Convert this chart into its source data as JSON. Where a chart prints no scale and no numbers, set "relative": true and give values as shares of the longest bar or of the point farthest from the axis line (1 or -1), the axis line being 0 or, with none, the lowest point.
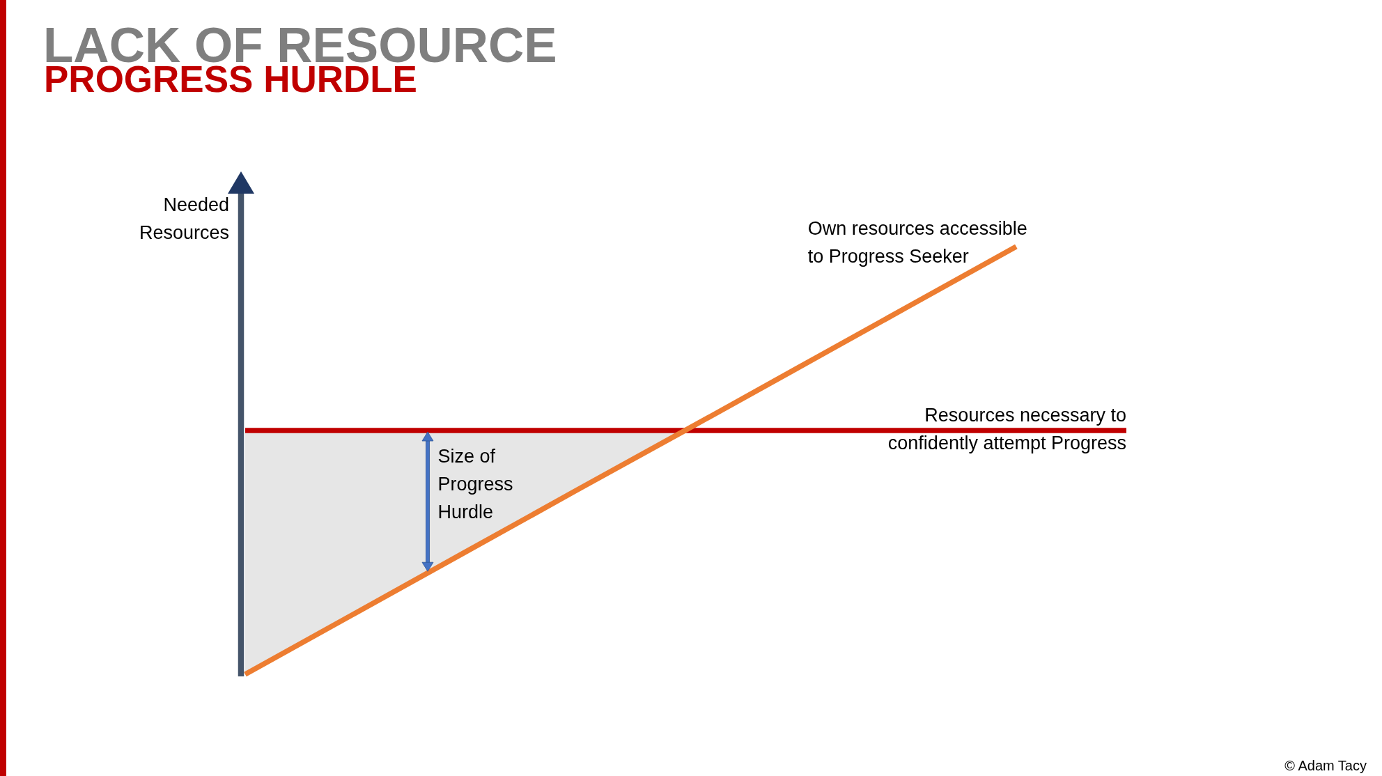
{
  "chart_data": {
    "type": "line",
    "title": "LACK OF RESOURCE",
    "subtitle": "PROGRESS HURDLE",
    "ylabel": "Needed Resources",
    "relative": true,
    "categories": [
      null,
      null,
      null,
      null,
      null,
      null,
      null,
      null,
      null
    ],
    "series": [
      {
        "name": "Own resources accessible to Progress Seeker",
        "color": "#ed7d31",
        "values": [
          0,
          0.143,
          0.286,
          0.429,
          0.571,
          0.714,
          0.857,
          1,
          null
        ]
      },
      {
        "name": "Resources necessary to confidently attempt Progress",
        "color": "#c00000",
        "values": [
          0.57,
          0.57,
          0.57,
          0.57,
          0.57,
          0.57,
          0.57,
          0.57,
          0.57
        ],
        "lower": [
          0,
          0.143,
          0.286,
          0.429,
          0.57,
          null,
          null,
          null,
          null
        ],
        "upper": [
          0.57,
          0.57,
          0.57,
          0.57,
          0.57,
          null,
          null,
          null,
          null
        ]
      }
    ],
    "annotations": [
      "Size of Progress Hurdle",
      "© Adam Tacy"
    ]
  }
}
